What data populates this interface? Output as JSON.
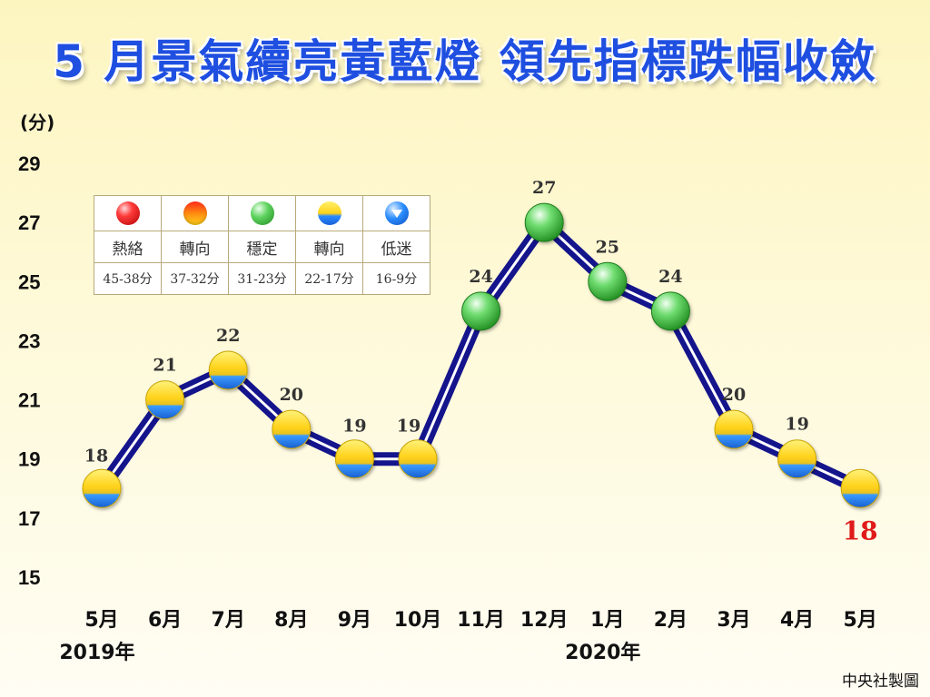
{
  "title": "5 月景氣續亮黃藍燈 領先指標跌幅收斂",
  "credit": "中央社製圖",
  "chart_data": {
    "type": "line",
    "title": "5 月景氣續亮黃藍燈 領先指標跌幅收斂",
    "ylabel": "(分)",
    "xlabel": "",
    "ylim": [
      15,
      29
    ],
    "y_ticks": [
      "29",
      "27",
      "25",
      "23",
      "21",
      "19",
      "17",
      "15"
    ],
    "categories": [
      "5月",
      "6月",
      "7月",
      "8月",
      "9月",
      "10月",
      "11月",
      "12月",
      "1月",
      "2月",
      "3月",
      "4月",
      "5月"
    ],
    "year_labels": [
      "2019年",
      "2020年"
    ],
    "values": [
      18,
      21,
      22,
      20,
      19,
      19,
      24,
      27,
      25,
      24,
      20,
      19,
      18
    ],
    "value_labels": [
      "18",
      "21",
      "22",
      "20",
      "19",
      "19",
      "24",
      "27",
      "25",
      "24",
      "20",
      "19",
      "18"
    ],
    "signals": [
      "yellow-blue",
      "yellow-blue",
      "yellow-blue",
      "yellow-blue",
      "yellow-blue",
      "yellow-blue",
      "green",
      "green",
      "green",
      "green",
      "yellow-blue",
      "yellow-blue",
      "yellow-blue"
    ],
    "highlight_color": "#e01a1a",
    "line_color": "#14148c",
    "grid": false
  },
  "legend": {
    "names": [
      "熱絡",
      "轉向",
      "穩定",
      "轉向",
      "低迷"
    ],
    "ranges": [
      "45-38分",
      "37-32分",
      "31-23分",
      "22-17分",
      "16-9分"
    ],
    "icons": [
      "red-lamp-icon",
      "yellow-red-lamp-icon",
      "green-lamp-icon",
      "yellow-blue-lamp-icon",
      "blue-down-triangle-icon"
    ]
  }
}
